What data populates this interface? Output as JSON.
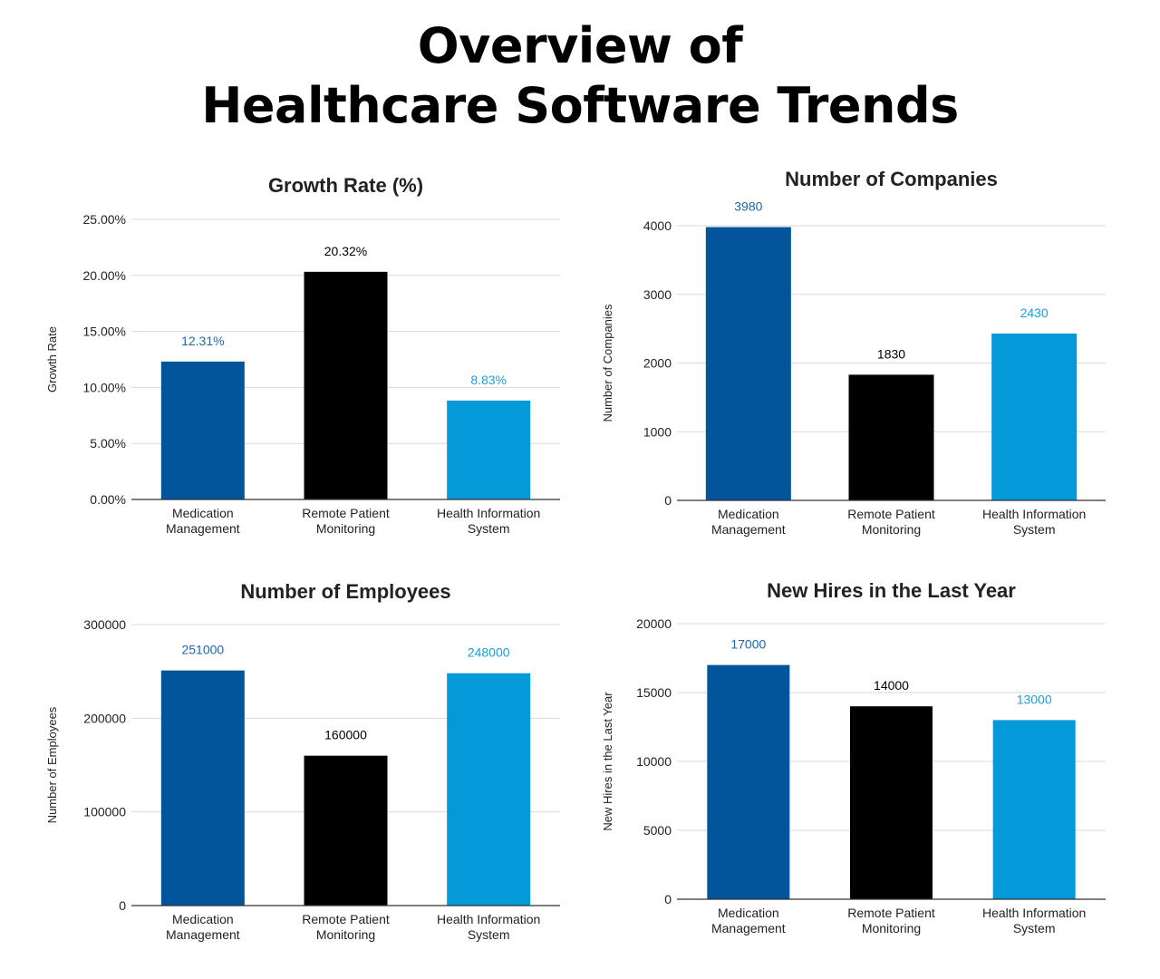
{
  "page": {
    "title_line1": "Overview of",
    "title_line2": "Healthcare Software Trends"
  },
  "colors": {
    "dark_blue": "#03559b",
    "black": "#000000",
    "light_blue": "#0499d9",
    "grid": "#d9d9d9",
    "axis": "#333333",
    "label_dark_blue": "#1f66aa",
    "label_light_blue": "#1ba0dc"
  },
  "chart_data": [
    {
      "type": "bar",
      "title": "Growth Rate (%)",
      "ylabel": "Growth Rate",
      "xlabel": "",
      "categories": [
        "Medication Management",
        "Remote Patient Monitoring",
        "Health Information System"
      ],
      "category_lines": [
        [
          "Medication",
          "Management"
        ],
        [
          "Remote Patient",
          "Monitoring"
        ],
        [
          "Health Information",
          "System"
        ]
      ],
      "values": [
        12.31,
        20.32,
        8.83
      ],
      "value_labels": [
        "12.31%",
        "20.32%",
        "8.83%"
      ],
      "ylim": [
        0,
        25
      ],
      "yticks": [
        0,
        5,
        10,
        15,
        20,
        25
      ],
      "ytick_labels": [
        "0.00%",
        "5.00%",
        "10.00%",
        "15.00%",
        "20.00%",
        "25.00%"
      ],
      "grid": true
    },
    {
      "type": "bar",
      "title": "Number of Companies",
      "ylabel": "Number of Companies",
      "xlabel": "",
      "categories": [
        "Medication Management",
        "Remote Patient Monitoring",
        "Health Information System"
      ],
      "category_lines": [
        [
          "Medication",
          "Management"
        ],
        [
          "Remote Patient",
          "Monitoring"
        ],
        [
          "Health Information",
          "System"
        ]
      ],
      "values": [
        3980,
        1830,
        2430
      ],
      "value_labels": [
        "3980",
        "1830",
        "2430"
      ],
      "ylim": [
        0,
        4000
      ],
      "yticks": [
        0,
        1000,
        2000,
        3000,
        4000
      ],
      "ytick_labels": [
        "0",
        "1000",
        "2000",
        "3000",
        "4000"
      ],
      "grid": true
    },
    {
      "type": "bar",
      "title": "Number of Employees",
      "ylabel": "Number of Employees",
      "xlabel": "",
      "categories": [
        "Medication Management",
        "Remote Patient Monitoring",
        "Health Information System"
      ],
      "category_lines": [
        [
          "Medication",
          "Management"
        ],
        [
          "Remote Patient",
          "Monitoring"
        ],
        [
          "Health Information",
          "System"
        ]
      ],
      "values": [
        251000,
        160000,
        248000
      ],
      "value_labels": [
        "251000",
        "160000",
        "248000"
      ],
      "ylim": [
        0,
        300000
      ],
      "yticks": [
        0,
        100000,
        200000,
        300000
      ],
      "ytick_labels": [
        "0",
        "100000",
        "200000",
        "300000"
      ],
      "grid": true
    },
    {
      "type": "bar",
      "title": "New Hires in the Last Year",
      "ylabel": "New Hires in the Last Year",
      "xlabel": "",
      "categories": [
        "Medication Management",
        "Remote Patient Monitoring",
        "Health Information System"
      ],
      "category_lines": [
        [
          "Medication",
          "Management"
        ],
        [
          "Remote Patient",
          "Monitoring"
        ],
        [
          "Health Information",
          "System"
        ]
      ],
      "values": [
        17000,
        14000,
        13000
      ],
      "value_labels": [
        "17000",
        "14000",
        "13000"
      ],
      "ylim": [
        0,
        20000
      ],
      "yticks": [
        0,
        5000,
        10000,
        15000,
        20000
      ],
      "ytick_labels": [
        "0",
        "5000",
        "10000",
        "15000",
        "20000"
      ],
      "grid": true
    }
  ]
}
